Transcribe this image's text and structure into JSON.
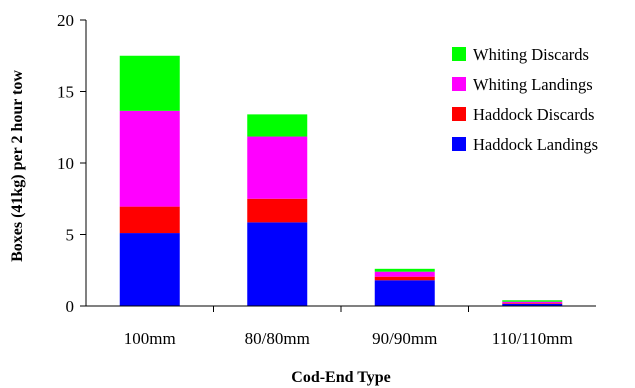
{
  "chart_data": {
    "type": "bar",
    "stacked": true,
    "categories": [
      "100mm",
      "80/80mm",
      "90/90mm",
      "110/110mm"
    ],
    "series": [
      {
        "name": "Haddock Landings",
        "color": "#0000ff",
        "values": [
          5.1,
          5.85,
          1.8,
          0.15
        ]
      },
      {
        "name": "Haddock Discards",
        "color": "#ff0000",
        "values": [
          1.85,
          1.65,
          0.25,
          0.05
        ]
      },
      {
        "name": "Whiting Landings",
        "color": "#ff00ff",
        "values": [
          6.7,
          4.35,
          0.35,
          0.1
        ]
      },
      {
        "name": "Whiting Discards",
        "color": "#00ff00",
        "values": [
          3.85,
          1.55,
          0.2,
          0.1
        ]
      }
    ],
    "xlabel": "Cod-End Type",
    "ylabel": "Boxes (41kg) per 2 hour tow",
    "ylim": [
      0,
      20
    ],
    "yticks": [
      0,
      5,
      10,
      15,
      20
    ],
    "grid": false,
    "legend_position": "top-right",
    "legend_order": [
      "Whiting Discards",
      "Whiting Landings",
      "Haddock Discards",
      "Haddock Landings"
    ]
  }
}
